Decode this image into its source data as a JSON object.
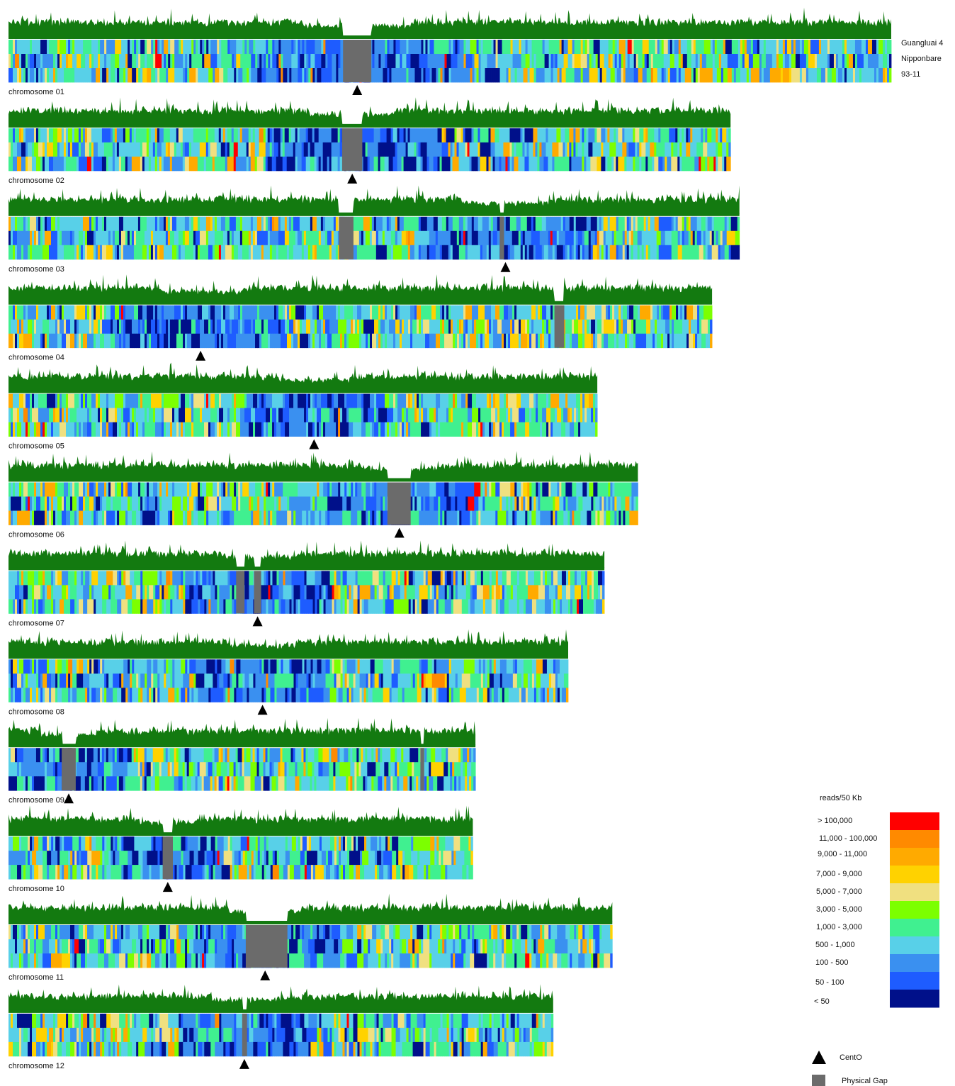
{
  "chart_data": {
    "type": "heatmap",
    "value_label": "reads/50 Kb",
    "tracks": [
      "Guangluai 4",
      "Nipponbare",
      "93-11"
    ],
    "chromosomes": [
      {
        "label": "chromosome 01",
        "length": 1.0,
        "centromere": 0.395,
        "gaps": [
          [
            0.379,
            0.411
          ]
        ]
      },
      {
        "label": "chromosome 02",
        "length": 0.818,
        "centromere": 0.476,
        "gaps": [
          [
            0.462,
            0.49
          ]
        ]
      },
      {
        "label": "chromosome 03",
        "length": 0.828,
        "centromere": 0.68,
        "gaps": [
          [
            0.452,
            0.472
          ],
          [
            0.672,
            0.678
          ]
        ]
      },
      {
        "label": "chromosome 04",
        "length": 0.797,
        "centromere": 0.273,
        "gaps": [
          [
            0.776,
            0.79
          ]
        ]
      },
      {
        "label": "chromosome 05",
        "length": 0.667,
        "centromere": 0.519,
        "gaps": []
      },
      {
        "label": "chromosome 06",
        "length": 0.713,
        "centromere": 0.621,
        "gaps": [
          [
            0.602,
            0.639
          ]
        ]
      },
      {
        "label": "chromosome 07",
        "length": 0.675,
        "centromere": 0.418,
        "gaps": [
          [
            0.382,
            0.396
          ],
          [
            0.412,
            0.424
          ]
        ]
      },
      {
        "label": "chromosome 08",
        "length": 0.634,
        "centromere": 0.454,
        "gaps": []
      },
      {
        "label": "chromosome 09",
        "length": 0.529,
        "centromere": 0.129,
        "gaps": [
          [
            0.114,
            0.144
          ],
          [
            0.882,
            0.89
          ]
        ]
      },
      {
        "label": "chromosome 10",
        "length": 0.526,
        "centromere": 0.343,
        "gaps": [
          [
            0.332,
            0.354
          ]
        ]
      },
      {
        "label": "chromosome 11",
        "length": 0.684,
        "centromere": 0.425,
        "gaps": [
          [
            0.393,
            0.462
          ]
        ]
      },
      {
        "label": "chromosome 12",
        "length": 0.617,
        "centromere": 0.433,
        "gaps": [
          [
            0.429,
            0.438
          ]
        ]
      }
    ],
    "legend": {
      "title": "reads/50 Kb",
      "placement": "bottom-right",
      "bins": [
        {
          "label": "> 100,000",
          "color": "#ff0000"
        },
        {
          "label": "11,000 - 100,000",
          "color": "#ff8a00"
        },
        {
          "label": "9,000 - 11,000",
          "color": "#ffaa00"
        },
        {
          "label": "7,000 - 9,000",
          "color": "#ffd200"
        },
        {
          "label": "5,000 - 7,000",
          "color": "#f0e080"
        },
        {
          "label": "3,000 - 5,000",
          "color": "#7cff00"
        },
        {
          "label": "1,000 - 3,000",
          "color": "#40f090"
        },
        {
          "label": "500 - 1,000",
          "color": "#58d0e8"
        },
        {
          "label": "100 - 500",
          "color": "#3a90f0"
        },
        {
          "label": "50 - 100",
          "color": "#1e5cff"
        },
        {
          "label": "< 50",
          "color": "#00108a"
        }
      ],
      "markers": [
        {
          "label": "CentO",
          "shape": "triangle",
          "color": "#000000"
        },
        {
          "label": "Physical Gap",
          "shape": "square",
          "color": "#6b6b6b"
        }
      ]
    },
    "colors": {
      "density_profile": "#137a10",
      "gap": "#6b6b6b",
      "centromere": "#000000"
    }
  }
}
